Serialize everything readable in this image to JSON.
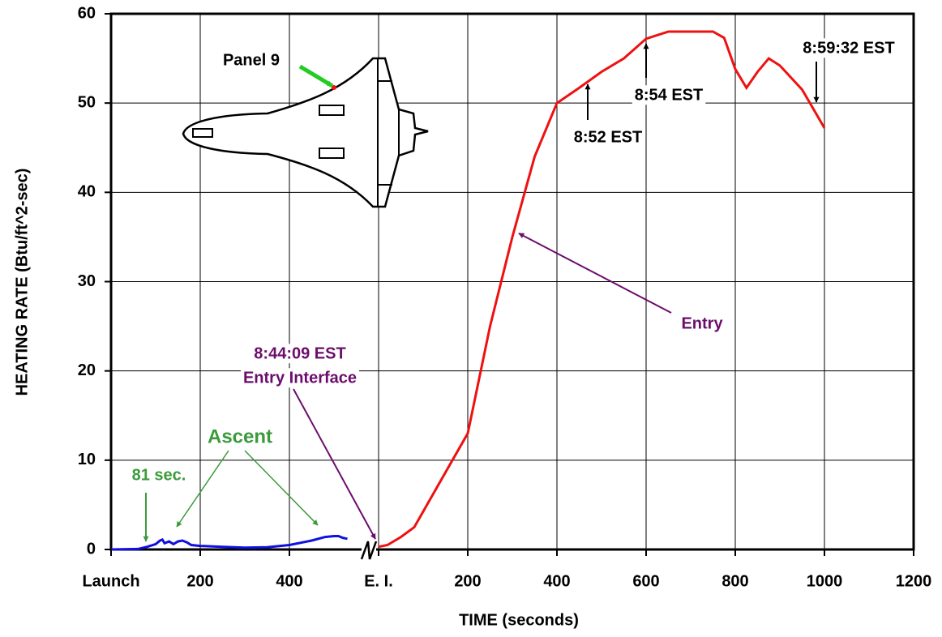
{
  "chart_data": {
    "type": "line",
    "ylabel": "HEATING RATE  (Btu/ft^2-sec)",
    "xlabel": "TIME (seconds)",
    "xlim": [
      0,
      1800
    ],
    "ylim": [
      0,
      60
    ],
    "xticks": [
      {
        "value": 0,
        "label": "Launch"
      },
      200,
      400,
      {
        "value": 600,
        "label": "E. I."
      },
      {
        "value": 800,
        "label": "200"
      },
      {
        "value": 1000,
        "label": "400"
      },
      {
        "value": 1200,
        "label": "600"
      },
      {
        "value": 1400,
        "label": "800"
      },
      {
        "value": 1600,
        "label": "1000"
      },
      {
        "value": 1800,
        "label": "1200"
      }
    ],
    "yticks": [
      0,
      10,
      20,
      30,
      40,
      50,
      60
    ],
    "grid": true,
    "series": [
      {
        "name": "Ascent",
        "color": "#1010e0",
        "x": [
          0,
          60,
          81,
          100,
          110,
          115,
          120,
          130,
          140,
          150,
          160,
          170,
          180,
          200,
          250,
          300,
          350,
          400,
          450,
          480,
          500,
          510,
          520,
          530
        ],
        "values": [
          0,
          0.05,
          0.3,
          0.6,
          1.0,
          1.1,
          0.7,
          0.9,
          0.6,
          0.9,
          1.0,
          0.8,
          0.5,
          0.4,
          0.3,
          0.2,
          0.25,
          0.5,
          1.0,
          1.4,
          1.5,
          1.5,
          1.3,
          1.2
        ]
      },
      {
        "name": "Entry",
        "color": "#ee1111",
        "x": [
          600,
          620,
          650,
          680,
          720,
          760,
          800,
          850,
          900,
          950,
          1000,
          1050,
          1100,
          1150,
          1200,
          1250,
          1300,
          1350,
          1375,
          1400,
          1425,
          1450,
          1475,
          1500,
          1550,
          1600
        ],
        "values": [
          0.3,
          0.5,
          1.4,
          2.5,
          6,
          9.5,
          13,
          25,
          35,
          44,
          50,
          51.7,
          53.5,
          55,
          57.2,
          58,
          58,
          58,
          57.3,
          53.8,
          51.7,
          53.5,
          55,
          54.2,
          51.5,
          47.2
        ]
      }
    ],
    "annotations": [
      {
        "text": "Panel 9",
        "color": "#000000"
      },
      {
        "text": "8:52 EST",
        "color": "#000000"
      },
      {
        "text": "8:54 EST",
        "color": "#000000"
      },
      {
        "text": "8:59:32 EST",
        "color": "#000000"
      },
      {
        "text": "Entry",
        "color": "#6b0d6b"
      },
      {
        "text": "8:44:09 EST",
        "color": "#6b0d6b"
      },
      {
        "text": "Entry Interface",
        "color": "#6b0d6b"
      },
      {
        "text": "Ascent",
        "color": "#3c9a3c"
      },
      {
        "text": "81 sec.",
        "color": "#3c9a3c"
      }
    ]
  }
}
